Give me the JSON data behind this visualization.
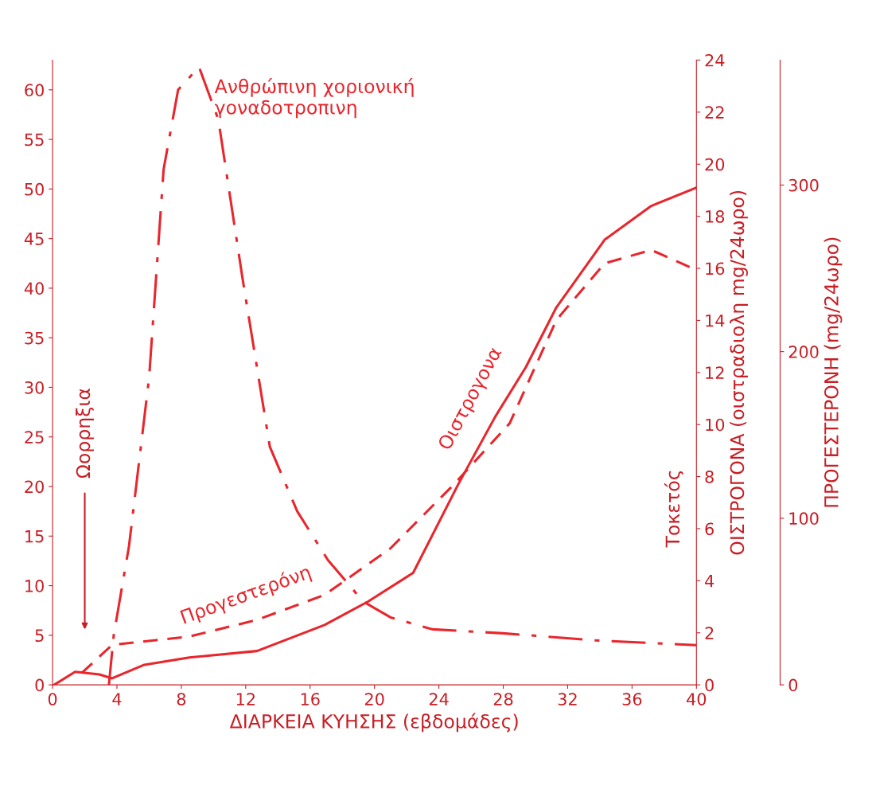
{
  "chart_data": {
    "type": "line",
    "xlabel": "ΔΙΑΡΚΕΙΑ ΚΥΗΣΗΣ (εβδομάδες)",
    "y2label": "ΟΙΣΤΡΟΓΟΝΑ (οιστραδιολη mg/24ωρο)",
    "y3label": "ΠΡΟΓΕΣΤΕΡΟΝΗ (mg/24ωρο)",
    "xlim": [
      0,
      40
    ],
    "xticks": [
      0,
      4,
      8,
      12,
      16,
      20,
      24,
      28,
      32,
      36,
      40
    ],
    "ylim": [
      0,
      63
    ],
    "yticks": [
      0,
      5,
      10,
      15,
      20,
      25,
      30,
      35,
      40,
      45,
      50,
      55,
      60
    ],
    "y2lim": [
      0,
      24
    ],
    "y2ticks": [
      0,
      2,
      4,
      6,
      8,
      10,
      12,
      14,
      16,
      18,
      20,
      22,
      24
    ],
    "y3lim": [
      0,
      375
    ],
    "y3ticks": [
      0,
      100,
      200,
      300
    ],
    "legend": false,
    "grid": false,
    "marker": "none",
    "series": [
      {
        "name": "Ανθρώπινη χοριονική γοναδοτροπινη",
        "color": "#e8262c",
        "line_style": "dashdot",
        "x": [
          3.5,
          3.8,
          4.75,
          6.0,
          6.9,
          7.8,
          9.1,
          10.3,
          11.8,
          13.5,
          15.2,
          17.1,
          19.3,
          21.0,
          23.6,
          28.0,
          33.6,
          40.0
        ],
        "values": [
          0,
          5,
          14,
          31,
          52,
          60,
          62.3,
          57,
          41,
          24,
          17.5,
          12.6,
          8.4,
          6.8,
          5.6,
          5.2,
          4.5,
          4.0
        ]
      },
      {
        "name": "Οιστρογονα",
        "color": "#e8262c",
        "line_style": "solid",
        "axis": "y2",
        "x": [
          0.1,
          1.4,
          2.9,
          3.7,
          5.7,
          8.5,
          12.7,
          16.9,
          19.6,
          22.4,
          25.2,
          27.5,
          29.4,
          31.3,
          34.3,
          37.2,
          40.0
        ],
        "values": [
          0,
          0.5,
          0.4,
          0.25,
          0.77,
          1.05,
          1.3,
          2.3,
          3.2,
          4.3,
          7.7,
          10.3,
          12.2,
          14.5,
          17.1,
          18.4,
          19.1
        ]
      },
      {
        "name": "Προγεστερόνη",
        "color": "#e8262c",
        "line_style": "dashed",
        "axis": "y3",
        "x": [
          1.8,
          3.7,
          8.5,
          12.7,
          16.9,
          21.0,
          24.9,
          28.4,
          31.3,
          34.3,
          37.2,
          40.0
        ],
        "values": [
          7,
          24,
          29,
          39,
          54,
          82,
          120,
          157,
          219,
          253,
          261,
          249
        ]
      }
    ],
    "annotations": [
      "Ωορρηξια",
      "Τοκετός"
    ]
  }
}
